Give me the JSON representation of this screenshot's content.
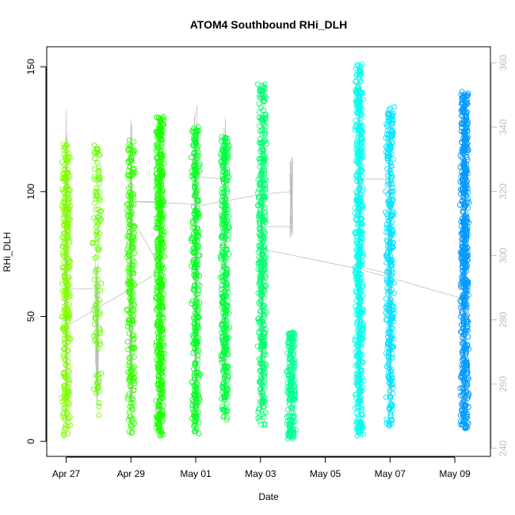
{
  "chart_data": {
    "type": "scatter",
    "title": "ATOM4 Southbound RHi_DLH",
    "xlabel": "Date",
    "ylabel": "RHi_DLH",
    "x_ticks": [
      "Apr 27",
      "Apr 29",
      "May 01",
      "May 03",
      "May 05",
      "May 07",
      "May 09"
    ],
    "y_ticks": [
      0,
      50,
      100,
      150
    ],
    "y2_ticks": [
      240,
      260,
      280,
      300,
      320,
      340,
      360
    ],
    "xlim_days": [
      -0.6,
      13.1
    ],
    "ylim": [
      -6,
      158
    ],
    "y2lim": [
      237.5,
      365
    ],
    "point_style": "open circles colored along a green-to-blue gradient by flight",
    "line_color": "#bebebe",
    "clusters": [
      {
        "day": 0.0,
        "ymin": 2,
        "ymax": 119,
        "y2min": 246,
        "y2max": 346,
        "color": "#80ff00",
        "density": 320
      },
      {
        "day": 0.95,
        "ymin": 9,
        "ymax": 119,
        "y2min": 252,
        "y2max": 300,
        "color": "#66ff00",
        "density": 120
      },
      {
        "day": 2.0,
        "ymin": 3,
        "ymax": 121,
        "y2min": 250,
        "y2max": 343,
        "color": "#33ff00",
        "density": 240
      },
      {
        "day": 2.9,
        "ymin": 2,
        "ymax": 130,
        "y2min": 248,
        "y2max": 330,
        "color": "#1aff00",
        "density": 500
      },
      {
        "day": 4.0,
        "ymin": 3,
        "ymax": 126,
        "y2min": 246,
        "y2max": 348,
        "color": "#00ff20",
        "density": 300
      },
      {
        "day": 4.9,
        "ymin": 8,
        "ymax": 123,
        "y2min": 252,
        "y2max": 345,
        "color": "#00ff40",
        "density": 350
      },
      {
        "day": 6.05,
        "ymin": 6,
        "ymax": 143,
        "y2min": 250,
        "y2max": 335,
        "color": "#00ff70",
        "density": 400
      },
      {
        "day": 6.95,
        "ymin": 1,
        "ymax": 44,
        "y2min": 305,
        "y2max": 331,
        "color": "#00ff90",
        "density": 200
      },
      {
        "day": 9.05,
        "ymin": 2,
        "ymax": 151,
        "y2min": 250,
        "y2max": 360,
        "color": "#00ffee",
        "density": 550
      },
      {
        "day": 10.0,
        "ymin": 6,
        "ymax": 134,
        "y2min": 250,
        "y2max": 340,
        "color": "#00e5ff",
        "density": 350
      },
      {
        "day": 12.3,
        "ymin": 5,
        "ymax": 140,
        "y2min": 245,
        "y2max": 345,
        "color": "#0099ff",
        "density": 600
      }
    ],
    "connector_segments": [
      {
        "x1": 0.0,
        "y1": 46,
        "x2": 2.9,
        "y2": 68
      },
      {
        "x1": 0.0,
        "y1": 61,
        "x2": 0.95,
        "y2": 61
      },
      {
        "x1": 2.0,
        "y1": 96,
        "x2": 4.0,
        "y2": 95
      },
      {
        "x1": 2.0,
        "y1": 96,
        "x2": 2.9,
        "y2": 96
      },
      {
        "x1": 2.0,
        "y1": 90,
        "x2": 2.9,
        "y2": 70
      },
      {
        "x1": 4.0,
        "y1": 106,
        "x2": 4.9,
        "y2": 105
      },
      {
        "x1": 4.0,
        "y1": 94,
        "x2": 6.05,
        "y2": 99
      },
      {
        "x1": 6.05,
        "y1": 99,
        "x2": 6.95,
        "y2": 100
      },
      {
        "x1": 6.05,
        "y1": 86,
        "x2": 6.95,
        "y2": 86
      },
      {
        "x1": 6.05,
        "y1": 77,
        "x2": 9.05,
        "y2": 69
      },
      {
        "x1": 9.05,
        "y1": 69,
        "x2": 12.3,
        "y2": 57
      },
      {
        "x1": 9.05,
        "y1": 105,
        "x2": 10.0,
        "y2": 105
      },
      {
        "x1": 9.05,
        "y1": 70,
        "x2": 10.0,
        "y2": 67
      }
    ]
  }
}
